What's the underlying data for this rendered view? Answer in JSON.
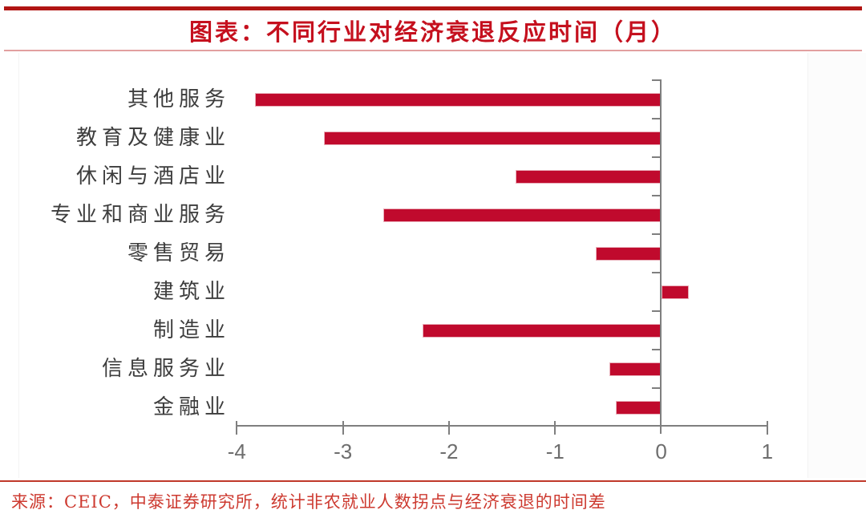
{
  "title": {
    "text": "图表：不同行业对经济衰退反应时间（月）"
  },
  "source": {
    "text": "来源：CEIC，中泰证券研究所，统计非农就业人数拐点与经济衰退的时间差"
  },
  "colors": {
    "bar": "#C00A2D",
    "bar_edge": "#E9AEB9",
    "title": "#C5101E",
    "top_rule": "#B11513",
    "title_rule": "#E2A0A0",
    "source_rule": "#C0392B",
    "source_text": "#CD3A30",
    "axis": "#7F7F7F",
    "tick_label": "#6E6E6E",
    "category_label": "#3D3D3D"
  },
  "chart_data": {
    "type": "bar",
    "orientation": "horizontal",
    "title": "图表：不同行业对经济衰退反应时间（月）",
    "unit": "月",
    "categories": [
      "其他服务",
      "教育及健康业",
      "休闲与酒店业",
      "专业和商业服务",
      "零售贸易",
      "建筑业",
      "制造业",
      "信息服务业",
      "金融业"
    ],
    "values": [
      -3.83,
      -3.18,
      -1.37,
      -2.62,
      -0.62,
      0.26,
      -2.25,
      -0.49,
      -0.43
    ],
    "xlabel": "",
    "ylabel": "",
    "xlim": [
      -4,
      1
    ],
    "xticks": [
      -4,
      -3,
      -2,
      -1,
      0,
      1
    ],
    "grid": false,
    "legend": false
  }
}
